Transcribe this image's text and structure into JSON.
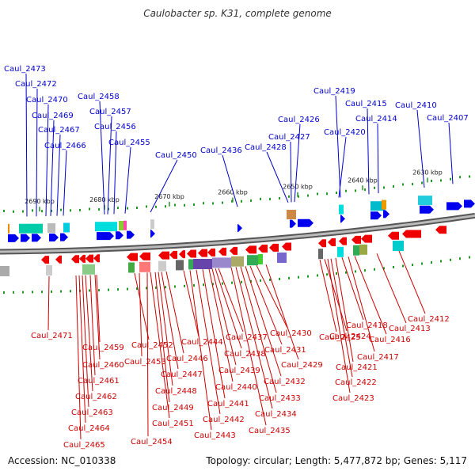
{
  "title": "Caulobacter sp. K31, complete genome",
  "footer": {
    "accession": "Accession: NC_010338",
    "summary": "Topology: circular; Length: 5,477,872 bp; Genes: 5,117"
  },
  "colors": {
    "plus_label": "#0000cc",
    "minus_label": "#cc0000",
    "plus_arrow": "#0000ee",
    "minus_arrow": "#ee0000",
    "tick": "#229922",
    "axis": "#999999"
  },
  "kbp_ticks": [
    {
      "text": "2690 kbp"
    },
    {
      "text": "2680 kbp"
    },
    {
      "text": "2670 kbp"
    },
    {
      "text": "2660 kbp"
    },
    {
      "text": "2650 kbp"
    },
    {
      "text": "2640 kbp"
    },
    {
      "text": "2630 kbp"
    }
  ],
  "plus_genes": [
    "Caul_2473",
    "Caul_2472",
    "Caul_2470",
    "Caul_2469",
    "Caul_2467",
    "Caul_2466",
    "Caul_2458",
    "Caul_2457",
    "Caul_2456",
    "Caul_2455",
    "Caul_2450",
    "Caul_2436",
    "Caul_2428",
    "Caul_2427",
    "Caul_2426",
    "Caul_2420",
    "Caul_2419",
    "Caul_2415",
    "Caul_2414",
    "Caul_2410",
    "Caul_2407"
  ],
  "minus_genes": [
    "Caul_2471",
    "Caul_2459",
    "Caul_2460",
    "Caul_2461",
    "Caul_2462",
    "Caul_2463",
    "Caul_2464",
    "Caul_2465",
    "Caul_2452",
    "Caul_2453",
    "Caul_2454",
    "Caul_2451",
    "Caul_2449",
    "Caul_2448",
    "Caul_2447",
    "Caul_2446",
    "Caul_2444",
    "Caul_2443",
    "Caul_2442",
    "Caul_2441",
    "Caul_2440",
    "Caul_2439",
    "Caul_2438",
    "Caul_2437",
    "Caul_2435",
    "Caul_2434",
    "Caul_2433",
    "Caul_2432",
    "Caul_2431",
    "Caul_2430",
    "Caul_2429",
    "Caul_2425",
    "Caul_2424",
    "Caul_2423",
    "Caul_2422",
    "Caul_2421",
    "Caul_2418",
    "Caul_2417",
    "Caul_2416",
    "Caul_2413",
    "Caul_2412"
  ]
}
